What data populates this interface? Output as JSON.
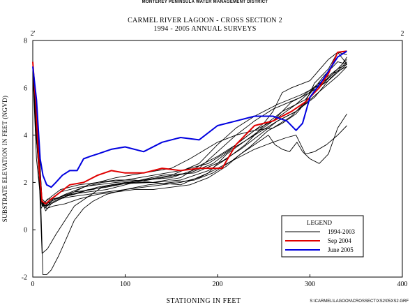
{
  "header": {
    "agency": "MONTEREY PENINSULA WATER MANAGEMENT DISTRICT",
    "title_line1": "CARMEL RIVER LAGOON - CROSS SECTION 2",
    "title_line2": "1994 - 2005 ANNUAL SURVEYS"
  },
  "footer": {
    "code": "S:\\CARMEL\\LAGOON\\CROSSECT\\XS2\\05XS2.GRF"
  },
  "chart_data": {
    "type": "line",
    "xlabel": "STATIONING IN FEET",
    "ylabel": "SUBSTRATE ELEVATION IN FEET (NGVD)",
    "xlim": [
      0,
      400
    ],
    "ylim": [
      -2,
      8
    ],
    "xticks": [
      0,
      100,
      200,
      300,
      400
    ],
    "yticks": [
      -2,
      0,
      2,
      4,
      6,
      8
    ],
    "top_markers": [
      {
        "x": 0,
        "label": "2'"
      },
      {
        "x": 400,
        "label": "2"
      }
    ],
    "grid": false,
    "legend": {
      "title": "LEGEND",
      "position": "bottom-right",
      "entries": [
        {
          "label": "1994-2003",
          "color": "#000000"
        },
        {
          "label": "Sep 2004",
          "color": "#e00000"
        },
        {
          "label": "June 2005",
          "color": "#0000e0"
        }
      ]
    },
    "series": [
      {
        "color": "#000000",
        "width": 0.9,
        "x": [
          0,
          4,
          9,
          13,
          18,
          30,
          50,
          70,
          90,
          120,
          150,
          180,
          200,
          220,
          240,
          260,
          290,
          310,
          330,
          340
        ],
        "y": [
          6.6,
          4.2,
          1.3,
          1.0,
          1.2,
          1.6,
          1.8,
          1.9,
          2.0,
          2.1,
          2.2,
          2.6,
          3.3,
          4.0,
          4.6,
          5.1,
          5.6,
          6.2,
          6.8,
          7.2
        ]
      },
      {
        "color": "#000000",
        "width": 0.9,
        "x": [
          0,
          4,
          10,
          14,
          20,
          35,
          60,
          80,
          100,
          130,
          160,
          190,
          210,
          230,
          250,
          270,
          295,
          315,
          330,
          340
        ],
        "y": [
          6.9,
          3.8,
          1.2,
          0.8,
          1.1,
          1.4,
          1.7,
          1.8,
          1.95,
          2.0,
          2.1,
          2.5,
          3.0,
          3.6,
          4.4,
          5.0,
          5.5,
          6.5,
          7.1,
          7.0
        ]
      },
      {
        "color": "#000000",
        "width": 0.9,
        "x": [
          0,
          5,
          10,
          15,
          22,
          40,
          60,
          80,
          100,
          120,
          150,
          180,
          200,
          220,
          240,
          265,
          290,
          310,
          325,
          340
        ],
        "y": [
          6.7,
          4.5,
          1.1,
          1.0,
          1.3,
          1.5,
          1.6,
          1.7,
          1.9,
          2.1,
          2.3,
          2.8,
          3.6,
          4.3,
          4.8,
          5.3,
          5.7,
          6.1,
          6.6,
          6.9
        ]
      },
      {
        "color": "#000000",
        "width": 0.9,
        "x": [
          0,
          4,
          9,
          12,
          16,
          25,
          45,
          70,
          100,
          130,
          160,
          190,
          210,
          235,
          260,
          285,
          305,
          320,
          335,
          340
        ],
        "y": [
          6.5,
          4.0,
          0.9,
          1.1,
          1.3,
          1.3,
          1.5,
          1.8,
          2.0,
          2.0,
          1.9,
          2.4,
          3.2,
          3.9,
          4.6,
          5.3,
          6.0,
          6.4,
          7.0,
          7.3
        ]
      },
      {
        "color": "#000000",
        "width": 0.9,
        "x": [
          0,
          5,
          10,
          14,
          20,
          30,
          50,
          70,
          90,
          110,
          130,
          160,
          180,
          200,
          220,
          240,
          260,
          280,
          300,
          320,
          340
        ],
        "y": [
          6.8,
          3.5,
          1.0,
          1.2,
          1.4,
          1.7,
          1.9,
          2.0,
          2.1,
          2.1,
          2.0,
          2.2,
          2.7,
          3.1,
          3.6,
          4.2,
          4.6,
          5.4,
          5.8,
          6.3,
          7.0
        ]
      },
      {
        "color": "#000000",
        "width": 0.9,
        "x": [
          0,
          4,
          8,
          11,
          15,
          25,
          40,
          60,
          90,
          120,
          150,
          170,
          200,
          220,
          240,
          260,
          280,
          295,
          305,
          320,
          330,
          340
        ],
        "y": [
          6.9,
          4.0,
          1.5,
          1.1,
          1.0,
          1.2,
          1.5,
          1.9,
          2.2,
          2.4,
          2.6,
          3.0,
          3.7,
          4.0,
          4.2,
          4.3,
          4.8,
          5.4,
          6.2,
          6.8,
          7.5,
          7.0
        ]
      },
      {
        "color": "#000000",
        "width": 0.9,
        "x": [
          0,
          5,
          10,
          15,
          20,
          30,
          45,
          65,
          85,
          110,
          140,
          170,
          195,
          215,
          240,
          265,
          285,
          300,
          315,
          330,
          340
        ],
        "y": [
          6.4,
          4.4,
          1.3,
          1.1,
          1.2,
          1.4,
          1.6,
          1.7,
          1.9,
          2.0,
          2.2,
          2.4,
          2.8,
          3.4,
          4.0,
          4.6,
          5.0,
          5.5,
          6.0,
          6.5,
          6.9
        ]
      },
      {
        "color": "#000000",
        "width": 0.9,
        "x": [
          0,
          4,
          9,
          13,
          20,
          35,
          55,
          75,
          100,
          130,
          160,
          190,
          210,
          230,
          250,
          260,
          270,
          280,
          300,
          320,
          330,
          340
        ],
        "y": [
          6.6,
          3.8,
          1.2,
          0.9,
          1.2,
          1.5,
          1.8,
          2.0,
          2.1,
          2.3,
          2.5,
          2.8,
          3.3,
          3.9,
          4.5,
          5.0,
          5.8,
          6.0,
          6.3,
          7.2,
          7.5,
          7.4
        ]
      },
      {
        "color": "#000000",
        "width": 0.9,
        "x": [
          0,
          5,
          10,
          16,
          25,
          45,
          75,
          105,
          140,
          175,
          205,
          225,
          245,
          265,
          285,
          305,
          322,
          340
        ],
        "y": [
          6.8,
          4.2,
          -1.0,
          -0.8,
          -0.2,
          1.0,
          1.8,
          2.0,
          2.3,
          2.4,
          2.9,
          3.4,
          4.0,
          4.6,
          5.0,
          5.6,
          6.4,
          7.1
        ]
      },
      {
        "color": "#000000",
        "width": 0.9,
        "x": [
          0,
          4,
          8,
          11,
          15,
          20,
          28,
          36,
          45,
          55,
          65,
          80,
          100,
          120,
          140,
          160,
          180,
          200,
          220,
          240,
          260,
          275,
          285,
          295,
          305,
          318,
          330,
          340
        ],
        "y": [
          6.8,
          5.0,
          2.0,
          -1.9,
          -1.9,
          -1.7,
          -1.1,
          -0.4,
          0.4,
          0.9,
          1.2,
          1.5,
          1.7,
          1.8,
          1.9,
          2.0,
          2.2,
          2.6,
          3.0,
          3.4,
          3.7,
          3.9,
          4.0,
          3.2,
          3.3,
          3.6,
          4.0,
          4.4
        ]
      },
      {
        "color": "#000000",
        "width": 0.9,
        "x": [
          0,
          5,
          10,
          15,
          22,
          35,
          50,
          70,
          90,
          110,
          130,
          150,
          170,
          190,
          210,
          225,
          240,
          255,
          262,
          270,
          278,
          286,
          292,
          300,
          310,
          320,
          330,
          340
        ],
        "y": [
          6.6,
          4.8,
          1.2,
          0.9,
          1.0,
          1.1,
          1.3,
          1.5,
          1.6,
          1.7,
          1.7,
          1.8,
          1.9,
          2.2,
          2.7,
          3.2,
          3.6,
          4.0,
          3.6,
          3.4,
          3.3,
          3.7,
          3.3,
          3.0,
          2.8,
          3.2,
          4.3,
          4.9
        ]
      },
      {
        "color": "#000000",
        "width": 0.9,
        "x": [
          0,
          4,
          9,
          13,
          18,
          28,
          42,
          60,
          80,
          100,
          125,
          150,
          175,
          195,
          215,
          235,
          255,
          270,
          285,
          300,
          315,
          330,
          340
        ],
        "y": [
          6.7,
          3.0,
          1.1,
          1.0,
          1.1,
          1.3,
          1.4,
          1.5,
          1.6,
          1.7,
          1.9,
          2.0,
          2.1,
          2.4,
          2.9,
          3.5,
          4.2,
          4.5,
          4.9,
          5.6,
          6.2,
          6.8,
          7.0
        ]
      },
      {
        "color": "#e00000",
        "width": 2,
        "x": [
          0,
          3,
          7,
          10,
          14,
          20,
          30,
          40,
          55,
          70,
          85,
          100,
          120,
          140,
          160,
          180,
          205,
          220,
          240,
          260,
          280,
          295,
          310,
          320,
          330,
          340
        ],
        "y": [
          7.1,
          5.5,
          2.5,
          1.2,
          1.1,
          1.3,
          1.6,
          1.9,
          2.0,
          2.3,
          2.5,
          2.4,
          2.4,
          2.6,
          2.5,
          2.6,
          2.6,
          3.6,
          4.4,
          4.6,
          5.0,
          5.4,
          6.0,
          6.6,
          7.5,
          7.55
        ]
      },
      {
        "color": "#0000e0",
        "width": 2,
        "x": [
          0,
          4,
          8,
          11,
          15,
          20,
          25,
          32,
          40,
          48,
          55,
          62,
          70,
          85,
          100,
          120,
          140,
          160,
          180,
          200,
          220,
          240,
          260,
          275,
          285,
          292,
          300,
          315,
          330,
          340
        ],
        "y": [
          6.9,
          5.5,
          3.0,
          2.3,
          1.9,
          1.8,
          2.0,
          2.3,
          2.5,
          2.5,
          3.0,
          3.1,
          3.2,
          3.4,
          3.5,
          3.3,
          3.7,
          3.9,
          3.8,
          4.4,
          4.6,
          4.8,
          4.8,
          4.6,
          4.2,
          4.5,
          5.6,
          6.4,
          7.3,
          7.55
        ]
      }
    ]
  }
}
